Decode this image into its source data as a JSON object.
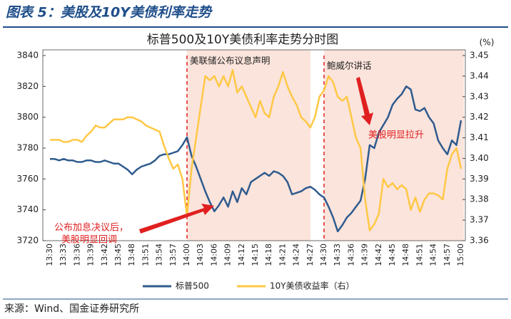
{
  "header": {
    "title": "图表 5：美股及10Y美债利率走势"
  },
  "chart_data": {
    "type": "line",
    "title": "标普500及10Y美债利率走势分时图",
    "y2_unit": "(%)",
    "categories": [
      "13:30",
      null,
      null,
      "13:33",
      null,
      null,
      "13:36",
      null,
      null,
      "13:39",
      null,
      null,
      "13:42",
      null,
      null,
      "13:45",
      null,
      null,
      "13:48",
      null,
      null,
      "13:51",
      null,
      null,
      "13:54",
      null,
      null,
      "13:57",
      null,
      null,
      "14:00",
      null,
      null,
      "14:03",
      null,
      null,
      "14:06",
      null,
      null,
      "14:09",
      null,
      null,
      "14:12",
      null,
      null,
      "14:15",
      null,
      null,
      "14:18",
      null,
      null,
      "14:21",
      null,
      null,
      "14:24",
      null,
      null,
      "14:27",
      null,
      null,
      "14:30",
      null,
      null,
      "14:33",
      null,
      null,
      "14:36",
      null,
      null,
      "14:39",
      null,
      null,
      "14:42",
      null,
      null,
      "14:45",
      null,
      null,
      "14:48",
      null,
      null,
      "14:51",
      null,
      null,
      "14:54",
      null,
      null,
      "14:57",
      null,
      null,
      "15:00"
    ],
    "series": [
      {
        "name": "标普500",
        "color": "#2f5b8e",
        "axis": "y",
        "values": [
          3773,
          3773,
          3772,
          3773,
          3772,
          3772,
          3771,
          3771,
          3772,
          3772,
          3771,
          3771,
          3772,
          3771,
          3770,
          3770,
          3768,
          3766,
          3763,
          3766,
          3768,
          3769,
          3770,
          3772,
          3775,
          3776,
          3776,
          3777,
          3778,
          3782,
          3787,
          3775,
          3768,
          3760,
          3752,
          3745,
          3739,
          3743,
          3748,
          3742,
          3752,
          3745,
          3754,
          3750,
          3758,
          3760,
          3762,
          3764,
          3762,
          3765,
          3764,
          3762,
          3758,
          3750,
          3751,
          3752,
          3754,
          3755,
          3753,
          3750,
          3748,
          3742,
          3735,
          3726,
          3730,
          3735,
          3738,
          3742,
          3746,
          3760,
          3782,
          3780,
          3790,
          3795,
          3800,
          3808,
          3812,
          3815,
          3820,
          3818,
          3805,
          3804,
          3806,
          3800,
          3796,
          3785,
          3780,
          3776,
          3785,
          3782,
          3798
        ]
      },
      {
        "name": "10Y美债收益率（右）",
        "color": "#ffc845",
        "axis": "y2",
        "values": [
          3.409,
          3.409,
          3.409,
          3.408,
          3.408,
          3.409,
          3.409,
          3.408,
          3.411,
          3.413,
          3.416,
          3.415,
          3.415,
          3.417,
          3.419,
          3.419,
          3.419,
          3.42,
          3.42,
          3.419,
          3.418,
          3.416,
          3.415,
          3.414,
          3.413,
          3.406,
          3.4,
          3.395,
          3.397,
          3.39,
          3.372,
          3.395,
          3.41,
          3.425,
          3.44,
          3.438,
          3.44,
          3.435,
          3.44,
          3.435,
          3.443,
          3.432,
          3.435,
          3.43,
          3.425,
          3.42,
          3.428,
          3.422,
          3.42,
          3.43,
          3.435,
          3.442,
          3.435,
          3.43,
          3.426,
          3.42,
          3.418,
          3.415,
          3.42,
          3.43,
          3.433,
          3.44,
          3.437,
          3.43,
          3.428,
          3.43,
          3.42,
          3.41,
          3.405,
          3.38,
          3.365,
          3.368,
          3.373,
          3.39,
          3.386,
          3.388,
          3.385,
          3.387,
          3.385,
          3.375,
          3.381,
          3.374,
          3.38,
          3.383,
          3.383,
          3.382,
          3.38,
          3.395,
          3.402,
          3.405,
          3.395
        ]
      }
    ],
    "ylim": [
      3720,
      3840
    ],
    "yticks": [
      3720,
      3740,
      3760,
      3780,
      3800,
      3820,
      3840
    ],
    "y2lim": [
      3.36,
      3.45
    ],
    "y2ticks": [
      3.36,
      3.37,
      3.38,
      3.39,
      {
        "value": 3.4,
        "label": "3.40"
      },
      3.41,
      3.42,
      3.43,
      3.44,
      3.45
    ],
    "annotations": [
      "美联储公布议息声明",
      "鲍威尔讲话",
      "美股明显拉升",
      "公布加息决议后，",
      "美股明显回调"
    ]
  },
  "footer": {
    "source": "来源：Wind、国金证券研究所"
  }
}
